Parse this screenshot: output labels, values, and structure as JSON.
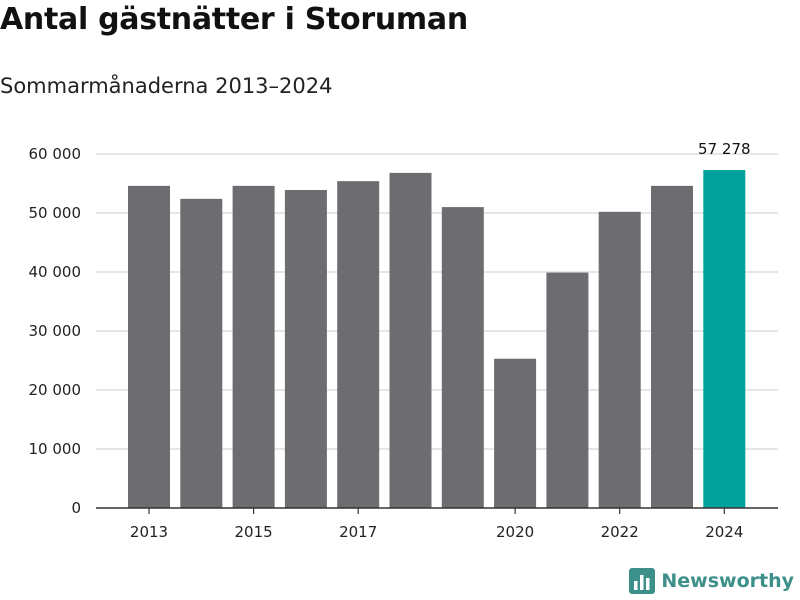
{
  "colors": {
    "bar": "#6d6c70",
    "highlight": "#00a29a",
    "grid": "#dddddd",
    "axis": "#333333",
    "brand": "#3d8f8a"
  },
  "brand": {
    "name": "Newsworthy",
    "icon": "bar-chart-logo-icon"
  },
  "chart_data": {
    "type": "bar",
    "title": "Antal gästnätter i Storuman",
    "subtitle": "Sommarmånaderna 2013–2024",
    "xlabel": "",
    "ylabel": "",
    "categories": [
      "2013",
      "2014",
      "2015",
      "2016",
      "2017",
      "2018",
      "2019",
      "2020",
      "2021",
      "2022",
      "2023",
      "2024"
    ],
    "values": [
      54600,
      52400,
      54600,
      53900,
      55400,
      56800,
      51000,
      25300,
      39900,
      50200,
      54600,
      57278
    ],
    "highlight_index": 11,
    "data_labels": [
      {
        "index": 11,
        "text": "57 278"
      }
    ],
    "x_tick_labels": [
      "2013",
      "2015",
      "2017",
      "2020",
      "2022",
      "2024"
    ],
    "y_tick_labels": [
      "0",
      "10 000",
      "20 000",
      "30 000",
      "40 000",
      "50 000",
      "60 000"
    ],
    "y_ticks": [
      0,
      10000,
      20000,
      30000,
      40000,
      50000,
      60000
    ],
    "ylim": [
      0,
      60000
    ],
    "grid": true,
    "legend": "none"
  }
}
